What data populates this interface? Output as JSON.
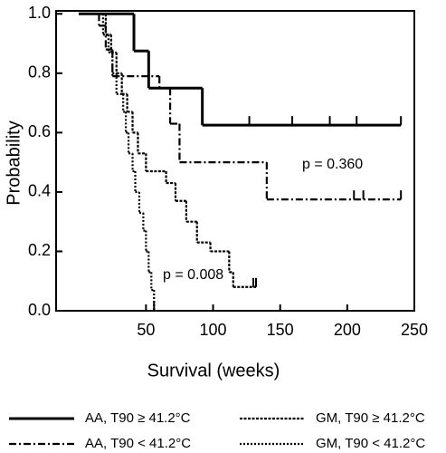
{
  "chart_data": {
    "type": "step",
    "xlabel": "Survival (weeks)",
    "ylabel": "Probability",
    "xlim": [
      -17,
      250
    ],
    "xticks": [
      50,
      100,
      150,
      200,
      250
    ],
    "ylim": [
      0,
      1.01
    ],
    "yticks": [
      {
        "value": 0,
        "label": "0.0"
      },
      0.2,
      0.4,
      0.6,
      0.8,
      {
        "value": 1,
        "label": "1.0"
      }
    ],
    "annotations": [
      "p = 0.360",
      "p = 0.008"
    ],
    "series": [
      {
        "name": "AA, T90 ≥ 41.2°C",
        "color": "#000000",
        "line_style": "solid",
        "x": [
          0,
          41,
          52,
          92,
          240
        ],
        "values": [
          1,
          0.875,
          0.75,
          0.625,
          0.625
        ],
        "censored": [
          127,
          159,
          187,
          207
        ]
      },
      {
        "name": "GM, T90 ≥ 41.2°C",
        "color": "#000000",
        "line_style": "dashed",
        "x": [
          0,
          20,
          24,
          28,
          32,
          36,
          40,
          44,
          50,
          65,
          72,
          80,
          88,
          98,
          112,
          115,
          132
        ],
        "values": [
          1,
          0.93,
          0.87,
          0.8,
          0.73,
          0.67,
          0.6,
          0.53,
          0.47,
          0.43,
          0.37,
          0.3,
          0.23,
          0.2,
          0.13,
          0.08,
          0.08
        ],
        "censored": [
          130
        ]
      },
      {
        "name": "AA, T90 < 41.2°C",
        "color": "#000000",
        "line_style": "dashdot",
        "x": [
          0,
          15,
          20,
          25,
          60,
          68,
          75,
          140,
          240
        ],
        "values": [
          1,
          0.96,
          0.88,
          0.79,
          0.75,
          0.63,
          0.5,
          0.375,
          0.375
        ],
        "censored": [
          205,
          212
        ]
      },
      {
        "name": "GM, T90 < 41.2°C",
        "color": "#000000",
        "line_style": "dotted",
        "x": [
          0,
          18,
          22,
          25,
          28,
          33,
          35,
          37,
          40,
          42,
          45,
          48,
          50,
          52,
          54,
          56
        ],
        "values": [
          1,
          0.93,
          0.87,
          0.8,
          0.73,
          0.67,
          0.6,
          0.53,
          0.47,
          0.4,
          0.33,
          0.27,
          0.2,
          0.13,
          0.07,
          0
        ],
        "censored": []
      }
    ]
  }
}
